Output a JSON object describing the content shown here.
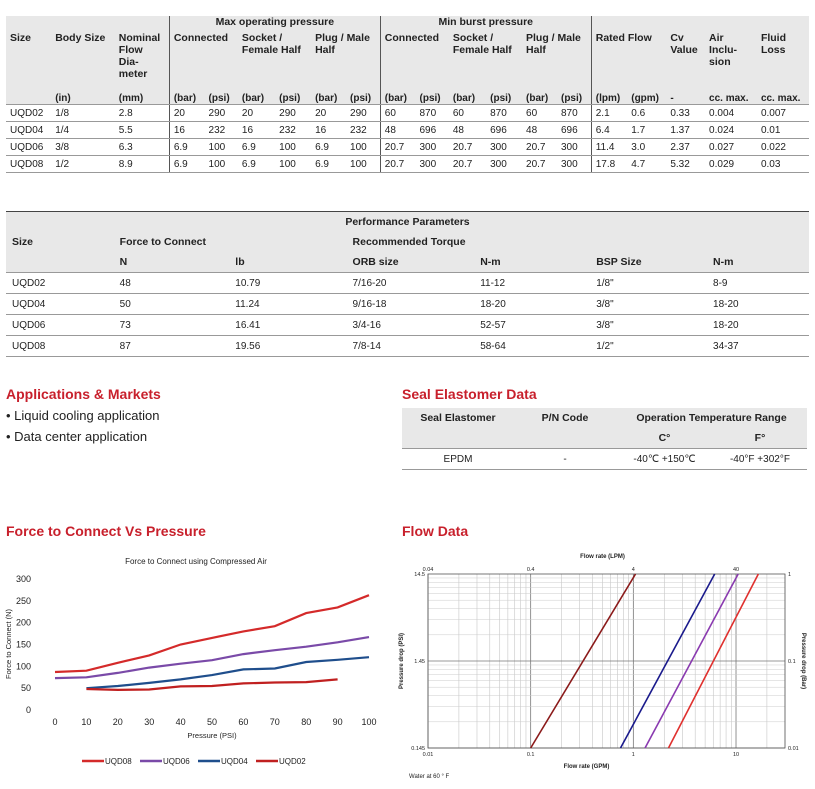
{
  "spec_table": {
    "group_headers": {
      "max_op": "Max operating pressure",
      "min_burst": "Min burst pressure"
    },
    "headers": {
      "size": "Size",
      "body_size": "Body Size",
      "nominal": [
        "Nominal",
        "Flow",
        "Dia-",
        "meter"
      ],
      "connected": "Connected",
      "socket": [
        "Socket /",
        "Female Half"
      ],
      "plug": [
        "Plug / Male",
        "Half"
      ],
      "connected2": "Connected",
      "socket2": [
        "Socket /",
        "Female Half"
      ],
      "plug2": [
        "Plug / Male",
        "Half"
      ],
      "rated_flow": "Rated Flow",
      "cv": [
        "Cv",
        "Value"
      ],
      "air": [
        "Air",
        "Inclu-",
        "sion"
      ],
      "fluid": [
        "Fluid",
        "Loss"
      ]
    },
    "units": [
      "",
      "(in)",
      "(mm)",
      "(bar)",
      "(psi)",
      "(bar)",
      "(psi)",
      "(bar)",
      "(psi)",
      "(bar)",
      "(psi)",
      "(bar)",
      "(psi)",
      "(bar)",
      "(psi)",
      "(lpm)",
      "(gpm)",
      "-",
      "cc. max.",
      "cc. max."
    ],
    "rows": [
      [
        "UQD02",
        "1/8",
        "2.8",
        "20",
        "290",
        "20",
        "290",
        "20",
        "290",
        "60",
        "870",
        "60",
        "870",
        "60",
        "870",
        "2.1",
        "0.6",
        "0.33",
        "0.004",
        "0.007"
      ],
      [
        "UQD04",
        "1/4",
        "5.5",
        "16",
        "232",
        "16",
        "232",
        "16",
        "232",
        "48",
        "696",
        "48",
        "696",
        "48",
        "696",
        "6.4",
        "1.7",
        "1.37",
        "0.024",
        "0.01"
      ],
      [
        "UQD06",
        "3/8",
        "6.3",
        "6.9",
        "100",
        "6.9",
        "100",
        "6.9",
        "100",
        "20.7",
        "300",
        "20.7",
        "300",
        "20.7",
        "300",
        "11.4",
        "3.0",
        "2.37",
        "0.027",
        "0.022"
      ],
      [
        "UQD08",
        "1/2",
        "8.9",
        "6.9",
        "100",
        "6.9",
        "100",
        "6.9",
        "100",
        "20.7",
        "300",
        "20.7",
        "300",
        "20.7",
        "300",
        "17.8",
        "4.7",
        "5.32",
        "0.029",
        "0.03"
      ]
    ]
  },
  "perf_table": {
    "title": "Performance Parameters",
    "size": "Size",
    "force": "Force to Connect",
    "torque": "Recommended Torque",
    "units": [
      "",
      "N",
      "lb",
      "ORB size",
      "N-m",
      "BSP Size",
      "N-m"
    ],
    "rows": [
      [
        "UQD02",
        "48",
        "10.79",
        "7/16-20",
        "11-12",
        "1/8\"",
        "8-9"
      ],
      [
        "UQD04",
        "50",
        "11.24",
        "9/16-18",
        "18-20",
        "3/8\"",
        "18-20"
      ],
      [
        "UQD06",
        "73",
        "16.41",
        "3/4-16",
        "52-57",
        "3/8\"",
        "18-20"
      ],
      [
        "UQD08",
        "87",
        "19.56",
        "7/8-14",
        "58-64",
        "1/2\"",
        "34-37"
      ]
    ]
  },
  "applications": {
    "title": "Applications & Markets",
    "items": [
      "Liquid cooling application",
      "Data center application"
    ]
  },
  "seal": {
    "title": "Seal Elastomer Data",
    "headers": [
      "Seal Elastomer",
      "P/N Code",
      "Operation Temperature Range"
    ],
    "sub": [
      "C°",
      "F°"
    ],
    "row": [
      "EPDM",
      "-",
      "-40℃ +150℃",
      "-40°F +302°F"
    ]
  },
  "force_chart_title": "Force to Connect Vs Pressure",
  "flow_chart_title": "Flow Data",
  "chart_data": [
    {
      "type": "line",
      "title": "Force to Connect using Compressed Air",
      "xlabel": "Pressure (PSI)",
      "ylabel": "Force to Connect (N)",
      "xlim": [
        0,
        100
      ],
      "ylim": [
        0,
        300
      ],
      "x_ticks": [
        0,
        10,
        20,
        30,
        40,
        50,
        60,
        70,
        80,
        90,
        100
      ],
      "y_ticks": [
        0,
        50,
        100,
        150,
        200,
        250,
        300
      ],
      "legend_position": "bottom",
      "series": [
        {
          "name": "UQD08",
          "color": "#d42a2a",
          "x": [
            0,
            10,
            20,
            30,
            40,
            50,
            60,
            70,
            80,
            90,
            100
          ],
          "y": [
            87,
            90,
            108,
            125,
            150,
            165,
            180,
            192,
            222,
            235,
            263
          ]
        },
        {
          "name": "UQD06",
          "color": "#7a4aa8",
          "x": [
            0,
            10,
            20,
            30,
            40,
            50,
            60,
            70,
            80,
            90,
            100
          ],
          "y": [
            73,
            75,
            85,
            97,
            106,
            114,
            128,
            137,
            145,
            155,
            167
          ]
        },
        {
          "name": "UQD04",
          "color": "#1f4e8c",
          "x": [
            10,
            20,
            30,
            40,
            50,
            60,
            70,
            80,
            90,
            100
          ],
          "y": [
            50,
            55,
            62,
            70,
            80,
            93,
            95,
            110,
            115,
            121
          ]
        },
        {
          "name": "UQD02",
          "color": "#c02020",
          "x": [
            10,
            20,
            30,
            40,
            50,
            60,
            70,
            80,
            90
          ],
          "y": [
            48,
            46,
            47,
            54,
            55,
            61,
            63,
            64,
            70
          ]
        }
      ]
    },
    {
      "type": "line",
      "title": "",
      "top_axis_label": "Flow rate (LPM)",
      "bottom_axis_label": "Flow rate (GPM)",
      "left_axis_label": "Pressure drop (PSI)",
      "right_axis_label": "Pressure drop (Bar)",
      "top_ticks": [
        "0.04",
        "0.4",
        "4",
        "40"
      ],
      "bottom_ticks": [
        "0.01",
        "0.1",
        "1",
        "10"
      ],
      "left_ticks": [
        "14.5",
        "1.45",
        "0.145"
      ],
      "right_ticks": [
        "1",
        "0.1",
        "0.01"
      ],
      "x_scale": "log",
      "y_scale": "log",
      "xlim_gpm": [
        0.01,
        30
      ],
      "ylim_bar": [
        0.01,
        1
      ],
      "note": "Water at 60 ° F",
      "series": [
        {
          "color": "#8b1a1a",
          "gpm": [
            0.1,
            1.05
          ],
          "bar": [
            0.01,
            1
          ]
        },
        {
          "color": "#1a1a8c",
          "gpm": [
            0.75,
            6.2
          ],
          "bar": [
            0.01,
            1
          ]
        },
        {
          "color": "#8a3ab0",
          "gpm": [
            1.3,
            10.5
          ],
          "bar": [
            0.01,
            1
          ]
        },
        {
          "color": "#e0302e",
          "gpm": [
            2.2,
            16.5
          ],
          "bar": [
            0.01,
            1
          ]
        }
      ]
    }
  ]
}
